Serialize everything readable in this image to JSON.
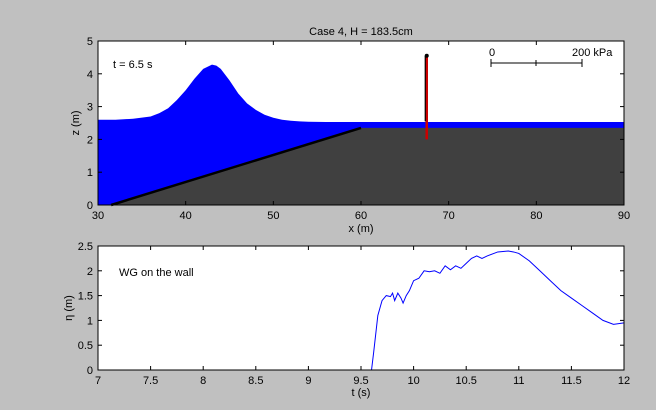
{
  "colors": {
    "figure_bg": "#c0c0c0",
    "water": "#0000ff",
    "seabed": "#404040",
    "line": "#0000ff",
    "wall": "#cc0000"
  },
  "chart_data": [
    {
      "type": "area",
      "title": "Case 4, H = 183.5cm",
      "xlabel": "x (m)",
      "ylabel": "z (m)",
      "xlim": [
        30,
        90
      ],
      "ylim": [
        0,
        5
      ],
      "xticks": [
        "30",
        "40",
        "50",
        "60",
        "70",
        "80",
        "90"
      ],
      "yticks": [
        "0",
        "1",
        "2",
        "3",
        "4",
        "5"
      ],
      "annotations": {
        "time": "t = 6.5 s"
      },
      "pressure_scale": {
        "start_label": "0",
        "end_label": "200 kPa"
      },
      "seabed": {
        "x": [
          31.5,
          60,
          90
        ],
        "z": [
          0,
          2.35,
          2.35
        ]
      },
      "wall": {
        "x": 67.5,
        "z_bottom": 2.0,
        "z_top": 4.55
      },
      "water_surface": {
        "x": [
          30,
          32,
          34,
          36,
          37,
          38,
          39,
          40,
          41,
          42,
          43,
          43.5,
          44,
          45,
          46,
          47,
          48,
          49,
          50,
          51,
          52,
          53,
          54,
          56,
          90
        ],
        "z": [
          2.6,
          2.6,
          2.63,
          2.7,
          2.8,
          2.95,
          3.2,
          3.5,
          3.85,
          4.15,
          4.28,
          4.25,
          4.15,
          3.8,
          3.4,
          3.1,
          2.9,
          2.75,
          2.66,
          2.6,
          2.57,
          2.55,
          2.54,
          2.53,
          2.53
        ]
      }
    },
    {
      "type": "line",
      "xlabel": "t (s)",
      "ylabel": "η (m)",
      "xlim": [
        7,
        12
      ],
      "ylim": [
        0,
        2.5
      ],
      "xticks": [
        "7",
        "7.5",
        "8",
        "8.5",
        "9",
        "9.5",
        "10",
        "10.5",
        "11",
        "11.5",
        "12"
      ],
      "yticks": [
        "0",
        "0.5",
        "1",
        "1.5",
        "2",
        "2.5"
      ],
      "annotations": {
        "label": "WG on the wall"
      },
      "series": [
        {
          "x": [
            7,
            9.6,
            9.62,
            9.66,
            9.7,
            9.74,
            9.78,
            9.8,
            9.82,
            9.85,
            9.88,
            9.9,
            9.93,
            9.96,
            10.0,
            10.05,
            10.1,
            10.15,
            10.2,
            10.25,
            10.3,
            10.35,
            10.4,
            10.45,
            10.5,
            10.55,
            10.6,
            10.65,
            10.7,
            10.8,
            10.9,
            10.95,
            11.0,
            11.1,
            11.2,
            11.3,
            11.4,
            11.5,
            11.6,
            11.7,
            11.8,
            11.9,
            12.0
          ],
          "y": [
            0,
            0,
            0.35,
            1.1,
            1.4,
            1.5,
            1.48,
            1.55,
            1.4,
            1.55,
            1.45,
            1.35,
            1.5,
            1.6,
            1.8,
            1.85,
            2.0,
            1.98,
            2.0,
            1.95,
            2.1,
            2.02,
            2.1,
            2.05,
            2.15,
            2.25,
            2.3,
            2.25,
            2.3,
            2.38,
            2.4,
            2.38,
            2.35,
            2.2,
            2.0,
            1.8,
            1.6,
            1.45,
            1.3,
            1.15,
            1.0,
            0.92,
            0.95
          ]
        }
      ]
    }
  ]
}
